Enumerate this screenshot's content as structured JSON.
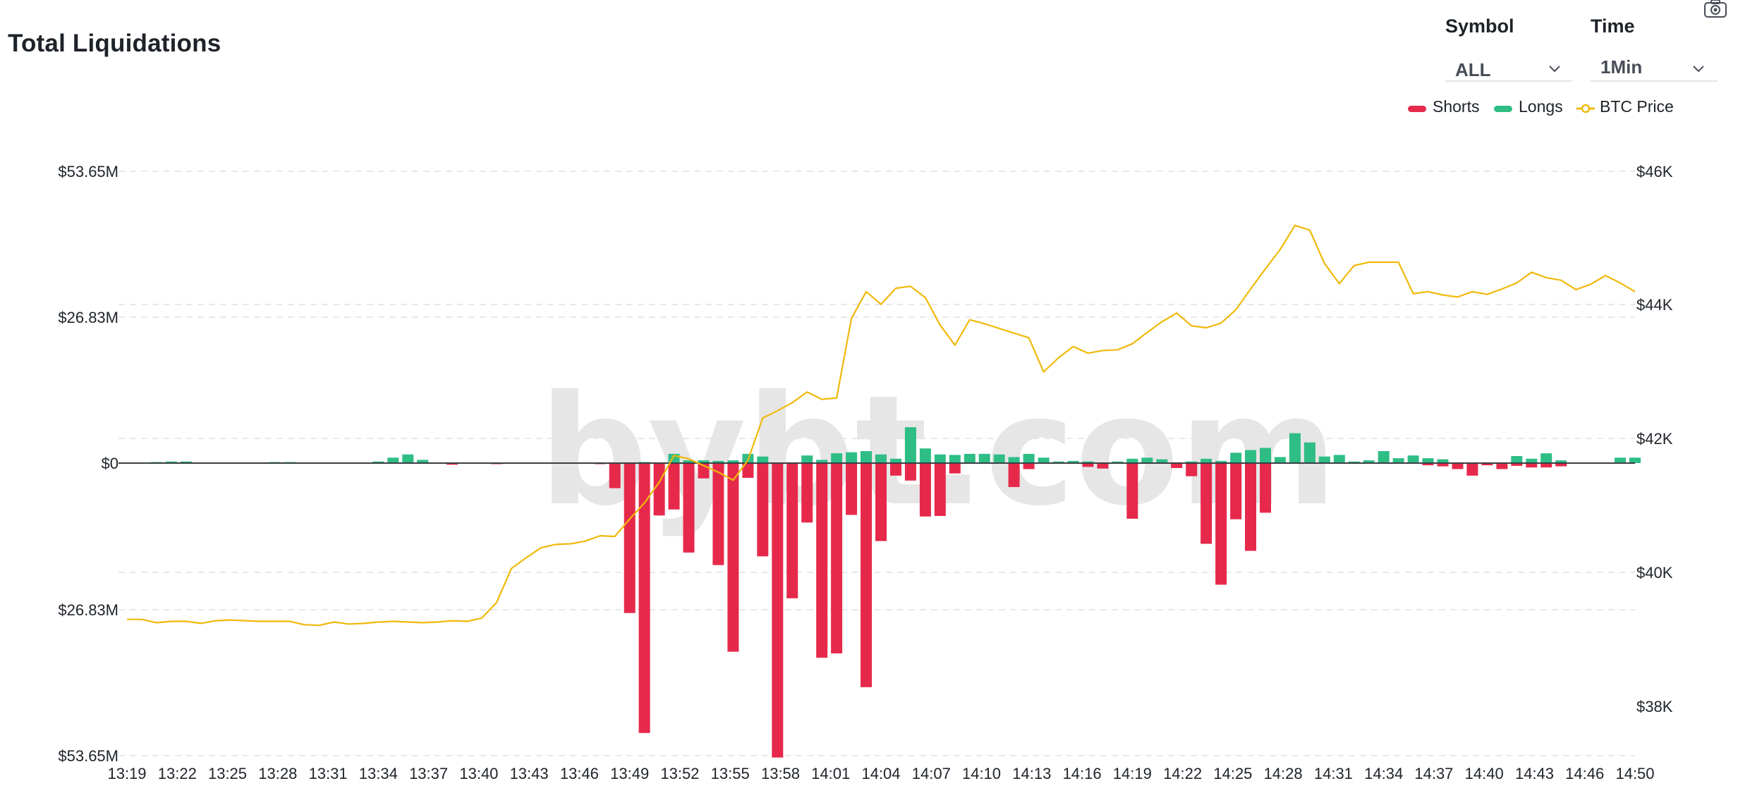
{
  "page": {
    "title": "Total Liquidations"
  },
  "controls": {
    "symbol": {
      "label": "Symbol",
      "value": "ALL",
      "icon": "chevron-down-icon"
    },
    "time": {
      "label": "Time",
      "value": "1Min",
      "icon": "chevron-down-icon"
    },
    "screenshot_icon": "camera-icon"
  },
  "watermark": "bybt.com",
  "colors": {
    "shorts": "#e6294b",
    "longs": "#2ebd85",
    "price": "#f0b90b",
    "grid": "#e6e8ea",
    "axis_text": "#1e2329"
  },
  "chart_data": {
    "type": "bar",
    "title": "Total Liquidations",
    "legend": {
      "placement": "top-right",
      "entries": [
        {
          "name": "Shorts",
          "color": "#e6294b",
          "marker": "bar"
        },
        {
          "name": "Longs",
          "color": "#2ebd85",
          "marker": "bar"
        },
        {
          "name": "BTC Price",
          "color": "#f0b90b",
          "marker": "line"
        }
      ]
    },
    "x_tick_labels": [
      "13:19",
      "13:22",
      "13:25",
      "13:28",
      "13:31",
      "13:34",
      "13:37",
      "13:40",
      "13:43",
      "13:46",
      "13:49",
      "13:52",
      "13:55",
      "13:58",
      "14:01",
      "14:04",
      "14:07",
      "14:10",
      "14:13",
      "14:16",
      "14:19",
      "14:22",
      "14:25",
      "14:28",
      "14:31",
      "14:34",
      "14:37",
      "14:40",
      "14:43",
      "14:46",
      "14:50"
    ],
    "y_left_tick_labels": [
      "$53.65M",
      "$26.83M",
      "$0",
      "$26.83M",
      "$53.65M"
    ],
    "y_left_range": [
      -53.65,
      53.65
    ],
    "y_left_unit": "$M",
    "y_right_tick_labels": [
      "$46K",
      "$44K",
      "$42K",
      "$40K",
      "$38K"
    ],
    "y_right_range": [
      37000,
      46000
    ],
    "grid": true,
    "x_start": "13:19",
    "x_interval_minutes": 1,
    "series": [
      {
        "name": "Shorts",
        "axis": "left",
        "values": [
          0,
          0,
          0,
          0,
          0,
          0,
          0,
          0,
          0,
          0,
          0,
          0,
          0,
          0,
          0,
          0,
          0,
          0,
          0,
          0,
          0,
          0,
          0,
          0,
          0,
          0,
          0,
          0,
          0,
          0,
          0,
          0,
          0,
          0,
          0,
          0,
          0,
          0,
          0,
          0,
          0,
          0,
          0,
          0,
          0,
          0,
          0,
          0,
          0,
          0,
          0,
          0,
          0,
          0,
          0,
          0,
          0,
          0,
          0,
          0,
          0,
          0,
          0,
          0,
          0,
          0,
          0,
          0,
          0,
          0,
          0,
          0,
          0,
          0,
          0,
          0,
          0,
          0,
          0,
          0,
          0,
          0,
          0,
          0,
          0,
          0,
          0,
          0,
          0,
          0,
          0,
          0,
          0,
          0,
          0,
          0,
          0,
          0,
          0,
          0,
          0,
          0,
          0
        ]
      },
      {
        "name": "Longs",
        "axis": "left",
        "values": [
          0,
          0,
          0.2,
          0.3,
          0.3,
          0,
          0,
          0,
          0,
          0,
          0.2,
          0.2,
          0,
          0,
          0,
          0,
          0,
          0.3,
          1,
          1.6,
          0.6,
          0,
          0,
          0,
          0,
          0,
          0,
          0,
          0,
          0,
          0,
          0,
          0,
          0,
          0,
          0.2,
          0,
          1.7,
          0.5,
          0.5,
          0.4,
          0.5,
          1.7,
          1.2,
          0,
          0,
          1.4,
          0.6,
          1.8,
          2,
          2.2,
          1.6,
          0.8,
          6.6,
          2.7,
          1.6,
          1.5,
          1.7,
          1.7,
          1.6,
          1.1,
          1.7,
          1,
          0.3,
          0.4,
          0.3,
          0,
          0.3,
          0.8,
          1,
          0.7,
          0,
          0.3,
          0.8,
          0.4,
          1.9,
          2.4,
          2.8,
          1.1,
          5.5,
          3.8,
          1.2,
          1.5,
          0.3,
          0.5,
          2.2,
          0.9,
          1.4,
          0.9,
          0.7,
          0,
          0,
          0,
          0,
          1.3,
          0.8,
          1.8,
          0.5,
          0,
          0,
          0,
          1,
          1
        ]
      },
      {
        "name": "Shorts (negative bars)",
        "axis": "left",
        "values": [
          0,
          0,
          0,
          0,
          0,
          0,
          0,
          0,
          0,
          0,
          0,
          0,
          0,
          0,
          0,
          0,
          0,
          0,
          0,
          0,
          0,
          0,
          -0.3,
          0,
          0,
          -0.2,
          0,
          0,
          0,
          0,
          0,
          0,
          -0.2,
          -4.6,
          -27.5,
          -49.5,
          -9.6,
          -8.5,
          -16.4,
          -2.8,
          -18.7,
          -34.6,
          -2.7,
          -17.1,
          -54,
          -24.8,
          -10.9,
          -35.7,
          -34.9,
          -9.5,
          -41.1,
          -14.3,
          -2.3,
          -3.2,
          -9.8,
          -9.7,
          -1.9,
          0,
          0,
          0,
          -4.4,
          -1.1,
          0,
          0,
          0,
          -0.7,
          -1,
          0,
          -10.2,
          0,
          0,
          -0.9,
          -2.4,
          -14.8,
          -22.3,
          -10.3,
          -16.1,
          -9.1,
          0,
          0,
          0,
          0,
          0,
          0,
          0,
          0,
          0,
          0,
          -0.4,
          -0.6,
          -1.1,
          -2.3,
          -0.4,
          -1.1,
          -0.5,
          -0.8,
          -0.8,
          -0.6,
          0,
          0,
          0,
          0
        ]
      },
      {
        "name": "BTC Price",
        "axis": "right",
        "values": [
          39300,
          39300,
          39250,
          39270,
          39270,
          39240,
          39280,
          39290,
          39280,
          39270,
          39270,
          39270,
          39220,
          39210,
          39260,
          39230,
          39240,
          39260,
          39270,
          39260,
          39250,
          39260,
          39280,
          39270,
          39320,
          39550,
          40060,
          40220,
          40370,
          40420,
          40430,
          40470,
          40550,
          40540,
          40800,
          41040,
          41350,
          41750,
          41700,
          41600,
          41500,
          41380,
          41680,
          42310,
          42420,
          42540,
          42700,
          42590,
          42610,
          43800,
          44200,
          44010,
          44250,
          44280,
          44110,
          43700,
          43400,
          43780,
          43720,
          43650,
          43580,
          43510,
          43000,
          43210,
          43380,
          43280,
          43320,
          43330,
          43420,
          43590,
          43750,
          43880,
          43690,
          43660,
          43730,
          43930,
          44240,
          44540,
          44830,
          45190,
          45120,
          44620,
          44320,
          44590,
          44640,
          44640,
          44640,
          44170,
          44200,
          44150,
          44120,
          44200,
          44160,
          44240,
          44330,
          44490,
          44410,
          44370,
          44230,
          44310,
          44440,
          44330,
          44200
        ]
      }
    ]
  }
}
